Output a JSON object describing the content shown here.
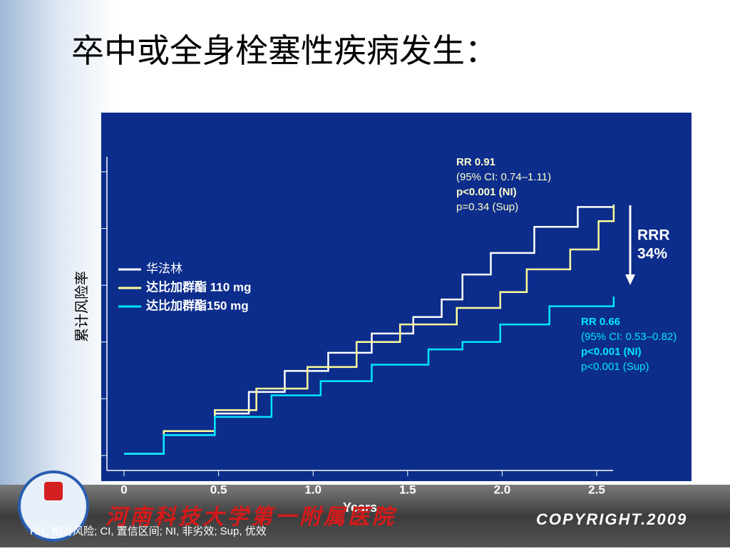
{
  "chart_data": {
    "type": "step",
    "title": "卒中或全身栓塞性疾病发生：",
    "x_label": "Years",
    "y_label": "累计风险率",
    "xlim": [
      0,
      2.6
    ],
    "xticks": [
      0,
      0.5,
      {
        "value": 1,
        "label": "1.0"
      },
      1.5,
      {
        "value": 2,
        "label": "2.0"
      },
      2.5
    ],
    "ylim": [
      -0.25,
      5.25
    ],
    "yticks": [
      0,
      1,
      2,
      3,
      4,
      5
    ],
    "series": [
      {
        "name": "华法林",
        "color": "#ffffff",
        "x": [
          0,
          0.21,
          0.48,
          0.66,
          0.85,
          1.08,
          1.31,
          1.53,
          1.68,
          1.79,
          1.94,
          2.17,
          2.4,
          2.59
        ],
        "values": [
          0.03,
          0.36,
          0.74,
          1.12,
          1.49,
          1.81,
          2.15,
          2.44,
          2.75,
          3.19,
          3.57,
          4.03,
          4.38,
          4.42
        ]
      },
      {
        "name": "达比加群酯 110 mg",
        "color": "#ffff99",
        "x": [
          0,
          0.21,
          0.48,
          0.7,
          0.97,
          1.23,
          1.46,
          1.76,
          1.99,
          2.13,
          2.36,
          2.51,
          2.59
        ],
        "values": [
          0.03,
          0.43,
          0.8,
          1.18,
          1.56,
          2.0,
          2.31,
          2.6,
          2.88,
          3.28,
          3.63,
          4.13,
          4.42
        ]
      },
      {
        "name": "达比加群酯150 mg",
        "color": "#00e5ff",
        "x": [
          0,
          0.21,
          0.48,
          0.78,
          1.04,
          1.31,
          1.61,
          1.79,
          1.99,
          2.25,
          2.59
        ],
        "values": [
          0.03,
          0.36,
          0.68,
          1.06,
          1.31,
          1.6,
          1.87,
          2.0,
          2.31,
          2.63,
          2.8
        ]
      }
    ],
    "annotations": [
      {
        "color": "#ffffcc",
        "lines": [
          "RR 0.91",
          "(95% CI: 0.74–1.11)",
          "p<0.001 (NI)",
          "p=0.34 (Sup)"
        ]
      },
      {
        "color": "#00e5ff",
        "lines": [
          "RR 0.66",
          "(95% CI: 0.53–0.82)",
          "p<0.001 (NI)",
          "p<0.001 (Sup)"
        ]
      },
      {
        "color": "#ffffff",
        "lines": [
          "RRR",
          "34%"
        ]
      }
    ]
  },
  "footer": {
    "institution": "河南科技大学第一附属医院",
    "copyright": "COPYRIGHT.2009",
    "note": "RR, 相对风险; CI, 置信区间; NI, 非劣效; Sup, 优效"
  }
}
